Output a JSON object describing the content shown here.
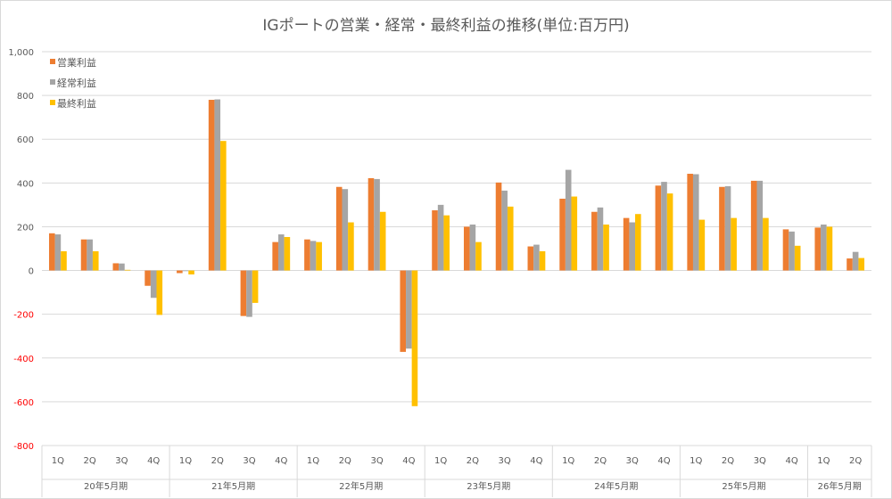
{
  "chart_data": {
    "type": "bar",
    "title": "IGポートの営業・経常・最終利益の推移(単位:百万円)",
    "ylim": [
      -800,
      1000
    ],
    "yticks": [
      "1,000",
      "800",
      "600",
      "400",
      "200",
      "0",
      "-200",
      "-400",
      "-600",
      "-800"
    ],
    "ytick_values": [
      1000,
      800,
      600,
      400,
      200,
      0,
      -200,
      -400,
      -600,
      -800
    ],
    "negative_tick_color": "#ff0000",
    "grid": true,
    "legend_position": "top-left",
    "groups": [
      {
        "label": "20年5月期",
        "quarters": [
          "1Q",
          "2Q",
          "3Q",
          "4Q"
        ]
      },
      {
        "label": "21年5月期",
        "quarters": [
          "1Q",
          "2Q",
          "3Q",
          "4Q"
        ]
      },
      {
        "label": "22年5月期",
        "quarters": [
          "1Q",
          "2Q",
          "3Q",
          "4Q"
        ]
      },
      {
        "label": "23年5月期",
        "quarters": [
          "1Q",
          "2Q",
          "3Q",
          "4Q"
        ]
      },
      {
        "label": "24年5月期",
        "quarters": [
          "1Q",
          "2Q",
          "3Q",
          "4Q"
        ]
      },
      {
        "label": "25年5月期",
        "quarters": [
          "1Q",
          "2Q",
          "3Q",
          "4Q"
        ]
      },
      {
        "label": "26年5月期",
        "quarters": [
          "1Q",
          "2Q"
        ]
      }
    ],
    "series": [
      {
        "name": "営業利益",
        "color": "#ed7d31",
        "values": [
          170,
          142,
          33,
          -70,
          -12,
          780,
          -208,
          130,
          142,
          382,
          422,
          -372,
          275,
          200,
          402,
          110,
          328,
          268,
          240,
          388,
          442,
          382,
          410,
          188,
          196,
          55
        ]
      },
      {
        "name": "経常利益",
        "color": "#a5a5a5",
        "values": [
          165,
          142,
          32,
          -125,
          -3,
          782,
          -212,
          165,
          135,
          372,
          418,
          -357,
          300,
          210,
          365,
          118,
          460,
          288,
          220,
          405,
          440,
          385,
          410,
          178,
          210,
          85
        ]
      },
      {
        "name": "最終利益",
        "color": "#ffc000",
        "values": [
          88,
          88,
          3,
          -203,
          -18,
          592,
          -148,
          153,
          130,
          220,
          268,
          -620,
          252,
          130,
          292,
          88,
          338,
          210,
          258,
          352,
          232,
          240,
          240,
          113,
          200,
          57
        ]
      }
    ]
  }
}
